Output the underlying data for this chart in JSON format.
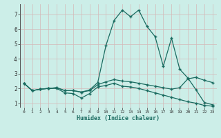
{
  "xlabel": "Humidex (Indice chaleur)",
  "background_color": "#cceee8",
  "grid_color": "#d4b8b8",
  "line_color": "#1a6b60",
  "xlim": [
    -0.5,
    23.5
  ],
  "ylim": [
    0.7,
    7.7
  ],
  "xticks": [
    0,
    1,
    2,
    3,
    4,
    5,
    6,
    7,
    8,
    9,
    10,
    11,
    12,
    13,
    14,
    15,
    16,
    17,
    18,
    19,
    20,
    21,
    22,
    23
  ],
  "yticks": [
    1,
    2,
    3,
    4,
    5,
    6,
    7
  ],
  "series": [
    [
      2.35,
      1.85,
      1.95,
      2.0,
      2.0,
      1.7,
      1.65,
      1.35,
      1.65,
      2.1,
      2.2,
      2.35,
      2.15,
      2.1,
      2.0,
      1.85,
      1.7,
      1.55,
      1.4,
      1.25,
      1.1,
      1.0,
      0.85,
      0.8
    ],
    [
      2.35,
      1.85,
      1.95,
      2.0,
      2.05,
      1.85,
      1.85,
      1.75,
      1.85,
      2.25,
      2.45,
      2.6,
      2.5,
      2.45,
      2.35,
      2.25,
      2.15,
      2.05,
      1.95,
      2.05,
      2.65,
      2.75,
      2.55,
      2.4
    ],
    [
      2.35,
      1.85,
      1.95,
      2.0,
      2.05,
      1.85,
      1.85,
      1.75,
      1.9,
      2.4,
      4.9,
      6.6,
      7.3,
      6.85,
      7.3,
      6.2,
      5.5,
      3.5,
      5.4,
      3.3,
      2.7,
      1.9,
      1.05,
      0.9
    ]
  ]
}
